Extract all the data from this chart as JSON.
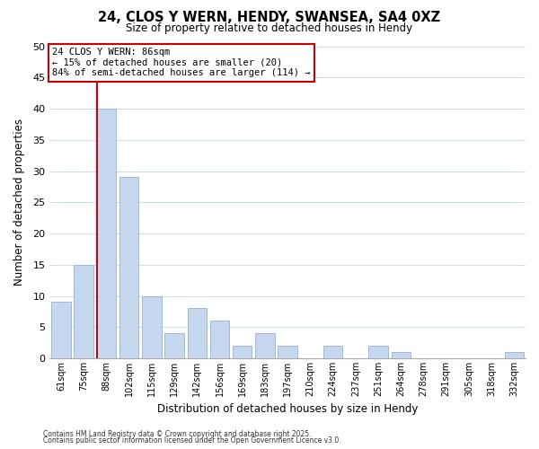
{
  "title": "24, CLOS Y WERN, HENDY, SWANSEA, SA4 0XZ",
  "subtitle": "Size of property relative to detached houses in Hendy",
  "xlabel": "Distribution of detached houses by size in Hendy",
  "ylabel": "Number of detached properties",
  "bar_labels": [
    "61sqm",
    "75sqm",
    "88sqm",
    "102sqm",
    "115sqm",
    "129sqm",
    "142sqm",
    "156sqm",
    "169sqm",
    "183sqm",
    "197sqm",
    "210sqm",
    "224sqm",
    "237sqm",
    "251sqm",
    "264sqm",
    "278sqm",
    "291sqm",
    "305sqm",
    "318sqm",
    "332sqm"
  ],
  "bar_values": [
    9,
    15,
    40,
    29,
    10,
    4,
    8,
    6,
    2,
    4,
    2,
    0,
    2,
    0,
    2,
    1,
    0,
    0,
    0,
    0,
    1
  ],
  "bar_color": "#c5d8f0",
  "bar_edge_color": "#a0b8d8",
  "ylim": [
    0,
    50
  ],
  "yticks": [
    0,
    5,
    10,
    15,
    20,
    25,
    30,
    35,
    40,
    45,
    50
  ],
  "property_line_color": "#cc0000",
  "annotation_title": "24 CLOS Y WERN: 86sqm",
  "annotation_line1": "← 15% of detached houses are smaller (20)",
  "annotation_line2": "84% of semi-detached houses are larger (114) →",
  "annotation_box_color": "#ffffff",
  "annotation_box_edge": "#cc0000",
  "footer1": "Contains HM Land Registry data © Crown copyright and database right 2025.",
  "footer2": "Contains public sector information licensed under the Open Government Licence v3.0.",
  "background_color": "#ffffff",
  "grid_color": "#d0dcef"
}
